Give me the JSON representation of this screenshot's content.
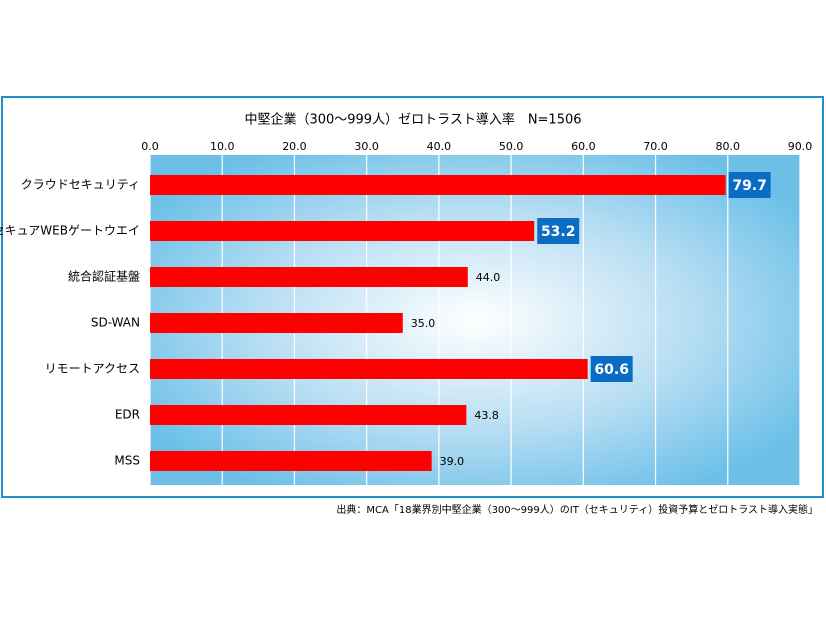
{
  "chart_data": {
    "type": "bar",
    "orientation": "horizontal",
    "title": "中堅企業（300～999人）ゼロトラスト導入率　N=1506",
    "categories": [
      "クラウドセキュリティ",
      "セキュアWEBゲートウエイ",
      "統合認証基盤",
      "SD-WAN",
      "リモートアクセス",
      "EDR",
      "MSS"
    ],
    "values": [
      79.7,
      53.2,
      44.0,
      35.0,
      60.6,
      43.8,
      39.0
    ],
    "value_labels": [
      "79.7",
      "53.2",
      "44.0",
      "35.0",
      "60.6",
      "43.8",
      "39.0"
    ],
    "color": "#ff0000",
    "label_box_color": "#0b6cc4",
    "xlim": [
      0,
      90
    ],
    "xticks": [
      {
        "value": 0,
        "label": "0.0"
      },
      {
        "value": 10,
        "label": "10.0"
      },
      {
        "value": 20,
        "label": "20.0"
      },
      {
        "value": 30,
        "label": "30.0"
      },
      {
        "value": 40,
        "label": "40.0"
      },
      {
        "value": 50,
        "label": "50.0"
      },
      {
        "value": 60,
        "label": "60.0"
      },
      {
        "value": 70,
        "label": "70.0"
      },
      {
        "value": 80,
        "label": "80.0"
      },
      {
        "value": 90,
        "label": "90.0"
      }
    ],
    "grid": true,
    "source": "出典：MCA「18業界別中堅企業（300～999人）のIT（セキュリティ）投資予算とゼロトラスト導入実態」"
  }
}
